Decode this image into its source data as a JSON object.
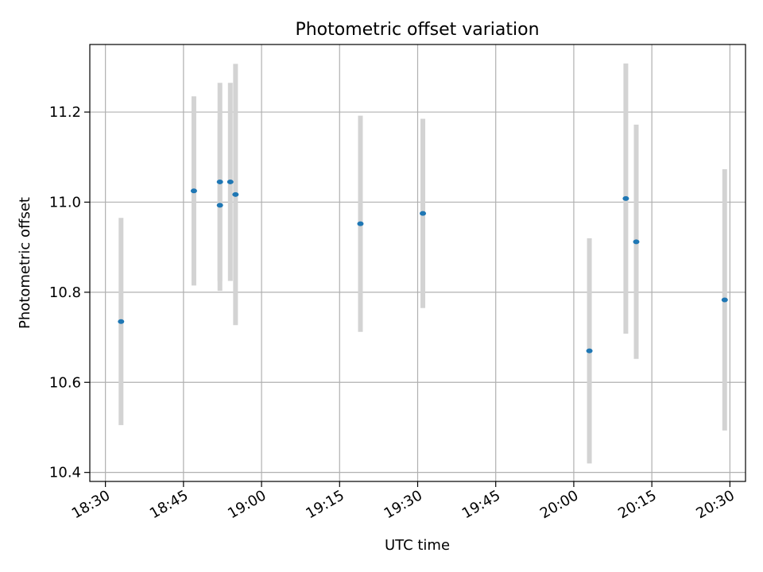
{
  "chart_data": {
    "type": "scatter",
    "title": "Photometric offset variation",
    "xlabel": "UTC time",
    "ylabel": "Photometric offset",
    "xlim": [
      "18:27",
      "20:33"
    ],
    "ylim": [
      10.38,
      11.35
    ],
    "grid": true,
    "x_ticks": [
      "18:30",
      "18:45",
      "19:00",
      "19:15",
      "19:30",
      "19:45",
      "20:00",
      "20:15",
      "20:30"
    ],
    "y_ticks": [
      "10.4",
      "10.6",
      "10.8",
      "11.0",
      "11.2"
    ],
    "series": [
      {
        "points": [
          {
            "x": "18:33",
            "y": 10.735,
            "yerr": 0.23
          },
          {
            "x": "18:47",
            "y": 11.025,
            "yerr": 0.21
          },
          {
            "x": "18:52",
            "y": 11.045,
            "yerr": 0.22
          },
          {
            "x": "18:52",
            "y": 10.993,
            "yerr": 0.19
          },
          {
            "x": "18:54",
            "y": 11.045,
            "yerr": 0.22
          },
          {
            "x": "18:55",
            "y": 11.017,
            "yerr": 0.29
          },
          {
            "x": "19:19",
            "y": 10.952,
            "yerr": 0.24
          },
          {
            "x": "19:31",
            "y": 10.975,
            "yerr": 0.21
          },
          {
            "x": "20:03",
            "y": 10.67,
            "yerr": 0.25
          },
          {
            "x": "20:10",
            "y": 11.008,
            "yerr": 0.3
          },
          {
            "x": "20:12",
            "y": 10.912,
            "yerr": 0.26
          },
          {
            "x": "20:29",
            "y": 10.783,
            "yerr": 0.29
          }
        ]
      }
    ],
    "colors": {
      "marker": "#1f77b4",
      "errorbar": "#d3d3d3",
      "grid": "#b0b0b0",
      "axes": "#000000"
    }
  }
}
